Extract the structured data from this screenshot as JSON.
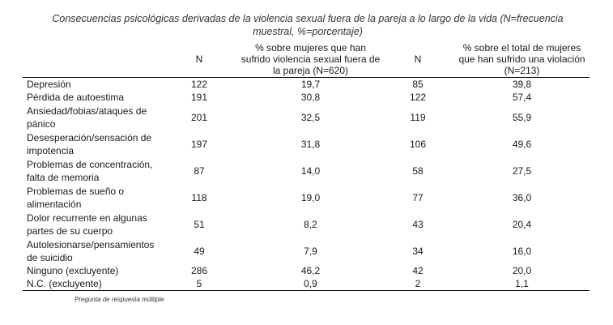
{
  "caption": "Consecuencias psicológicas derivadas de la violencia sexual fuera de la pareja a lo largo de la vida (N=frecuencia muestral, %=porcentaje)",
  "headers": {
    "label": "",
    "n1": "N",
    "pct1": "% sobre mujeres que han sufrido violencia sexual fuera de la pareja (N=620)",
    "n2": "N",
    "pct2": "% sobre el total de mujeres que han sufrido una violación (N=213)"
  },
  "rows": [
    {
      "label": "Depresión",
      "n1": "122",
      "pct1": "19,7",
      "n2": "85",
      "pct2": "39,8"
    },
    {
      "label": "Pérdida de autoestima",
      "n1": "191",
      "pct1": "30,8",
      "n2": "122",
      "pct2": "57,4"
    },
    {
      "label": "Ansiedad/fobias/ataques de pánico",
      "n1": "201",
      "pct1": "32,5",
      "n2": "119",
      "pct2": "55,9"
    },
    {
      "label": "Desesperación/sensación de impotencia",
      "n1": "197",
      "pct1": "31,8",
      "n2": "106",
      "pct2": "49,6"
    },
    {
      "label": "Problemas de concentración, falta de memoria",
      "n1": "87",
      "pct1": "14,0",
      "n2": "58",
      "pct2": "27,5"
    },
    {
      "label": "Problemas de sueño o alimentación",
      "n1": "118",
      "pct1": "19,0",
      "n2": "77",
      "pct2": "36,0"
    },
    {
      "label": "Dolor recurrente en algunas partes de su cuerpo",
      "n1": "51",
      "pct1": "8,2",
      "n2": "43",
      "pct2": "20,4"
    },
    {
      "label": "Autolesionarse/pensamientos de suicidio",
      "n1": "49",
      "pct1": "7,9",
      "n2": "34",
      "pct2": "16,0"
    },
    {
      "label": "Ninguno (excluyente)",
      "n1": "286",
      "pct1": "46,2",
      "n2": "42",
      "pct2": "20,0"
    },
    {
      "label": "N.C. (excluyente)",
      "n1": "5",
      "pct1": "0,9",
      "n2": "2",
      "pct2": "1,1"
    }
  ],
  "note": "Pregunta de respuesta múltiple"
}
